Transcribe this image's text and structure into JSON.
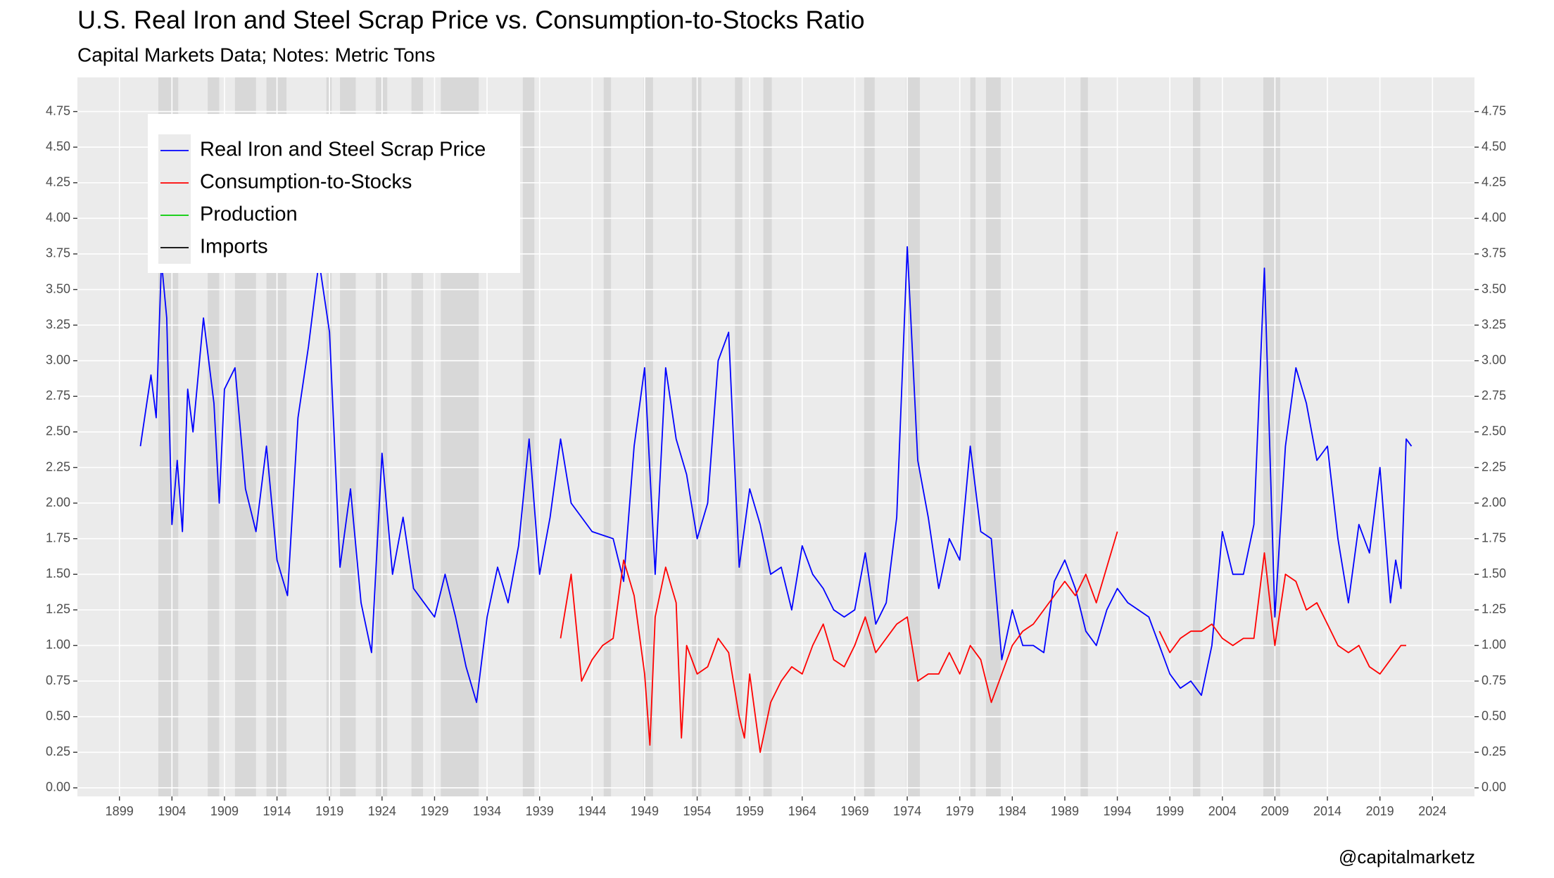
{
  "chart_data": {
    "type": "line",
    "title": "U.S. Real Iron and Steel Scrap Price vs. Consumption-to-Stocks Ratio",
    "subtitle": "Capital Markets Data; Notes: Metric Tons",
    "caption": "@capitalmarketz",
    "legend": "top-left",
    "grid": true,
    "xlim": [
      1895,
      2028
    ],
    "xticks": [
      1899,
      1904,
      1909,
      1914,
      1919,
      1924,
      1929,
      1934,
      1939,
      1944,
      1949,
      1954,
      1959,
      1964,
      1969,
      1974,
      1979,
      1984,
      1989,
      1994,
      1999,
      2004,
      2009,
      2014,
      2019,
      2024
    ],
    "ylim": [
      -0.06,
      4.99
    ],
    "yticks": [
      {
        "value": 0,
        "label": "0.00"
      },
      {
        "value": 0.25,
        "label": "0.25"
      },
      {
        "value": 0.5,
        "label": "0.50"
      },
      {
        "value": 0.75,
        "label": "0.75"
      },
      {
        "value": 1,
        "label": "1.00"
      },
      {
        "value": 1.25,
        "label": "1.25"
      },
      {
        "value": 1.5,
        "label": "1.50"
      },
      {
        "value": 1.75,
        "label": "1.75"
      },
      {
        "value": 2,
        "label": "2.00"
      },
      {
        "value": 2.25,
        "label": "2.25"
      },
      {
        "value": 2.5,
        "label": "2.50"
      },
      {
        "value": 2.75,
        "label": "2.75"
      },
      {
        "value": 3,
        "label": "3.00"
      },
      {
        "value": 3.25,
        "label": "3.25"
      },
      {
        "value": 3.5,
        "label": "3.50"
      },
      {
        "value": 3.75,
        "label": "3.75"
      },
      {
        "value": 4,
        "label": "4.00"
      },
      {
        "value": 4.25,
        "label": "4.25"
      },
      {
        "value": 4.5,
        "label": "4.50"
      },
      {
        "value": 4.75,
        "label": "4.75"
      }
    ],
    "y2lim": [
      -0.06,
      4.99
    ],
    "y2ticks": [
      {
        "value": 0,
        "label": "0.00"
      },
      {
        "value": 0.25,
        "label": "0.25"
      },
      {
        "value": 0.5,
        "label": "0.50"
      },
      {
        "value": 0.75,
        "label": "0.75"
      },
      {
        "value": 1,
        "label": "1.00"
      },
      {
        "value": 1.25,
        "label": "1.25"
      },
      {
        "value": 1.5,
        "label": "1.50"
      },
      {
        "value": 1.75,
        "label": "1.75"
      },
      {
        "value": 2,
        "label": "2.00"
      },
      {
        "value": 2.25,
        "label": "2.25"
      },
      {
        "value": 2.5,
        "label": "2.50"
      },
      {
        "value": 2.75,
        "label": "2.75"
      },
      {
        "value": 3,
        "label": "3.00"
      },
      {
        "value": 3.25,
        "label": "3.25"
      },
      {
        "value": 3.5,
        "label": "3.50"
      },
      {
        "value": 3.75,
        "label": "3.75"
      },
      {
        "value": 4,
        "label": "4.00"
      },
      {
        "value": 4.25,
        "label": "4.25"
      },
      {
        "value": 4.5,
        "label": "4.50"
      },
      {
        "value": 4.75,
        "label": "4.75"
      }
    ],
    "shaded_periods": [
      [
        1902.7,
        1904.6
      ],
      [
        1907.4,
        1908.5
      ],
      [
        1910,
        1912
      ],
      [
        1913,
        1914.9
      ],
      [
        1918.7,
        1919.2
      ],
      [
        1920,
        1921.5
      ],
      [
        1923.4,
        1924.5
      ],
      [
        1926.8,
        1927.9
      ],
      [
        1929.6,
        1933.2
      ],
      [
        1937.4,
        1938.5
      ],
      [
        1945.1,
        1945.8
      ],
      [
        1948.9,
        1949.8
      ],
      [
        1953.5,
        1954.4
      ],
      [
        1957.6,
        1958.3
      ],
      [
        1960.3,
        1961.1
      ],
      [
        1969.9,
        1970.9
      ],
      [
        1973.9,
        1975.2
      ],
      [
        1980,
        1980.5
      ],
      [
        1981.5,
        1982.9
      ],
      [
        1990.5,
        1991.2
      ],
      [
        2001.2,
        2001.9
      ],
      [
        2007.9,
        2009.5
      ]
    ],
    "series": [
      {
        "name": "Real Iron and Steel Scrap Price",
        "color": "#0000ff",
        "x": [
          1901,
          1902,
          1902.5,
          1903,
          1903.5,
          1904,
          1904.5,
          1905,
          1905.5,
          1906,
          1907,
          1908,
          1908.5,
          1909,
          1910,
          1911,
          1912,
          1913,
          1914,
          1915,
          1916,
          1917,
          1918,
          1919,
          1920,
          1921,
          1922,
          1923,
          1924,
          1925,
          1926,
          1927,
          1928,
          1929,
          1930,
          1931,
          1932,
          1933,
          1934,
          1935,
          1936,
          1937,
          1938,
          1939,
          1940,
          1941,
          1942,
          1944,
          1946,
          1947,
          1948,
          1949,
          1950,
          1951,
          1952,
          1953,
          1954,
          1955,
          1956,
          1957,
          1958,
          1959,
          1960,
          1961,
          1962,
          1963,
          1964,
          1965,
          1966,
          1967,
          1968,
          1969,
          1970,
          1971,
          1972,
          1973,
          1974,
          1975,
          1976,
          1977,
          1978,
          1979,
          1980,
          1981,
          1982,
          1983,
          1984,
          1985,
          1986,
          1987,
          1988,
          1989,
          1990,
          1991,
          1992,
          1993,
          1994,
          1995,
          1996,
          1997,
          1998,
          1999,
          2000,
          2001,
          2002,
          2003,
          2004,
          2005,
          2006,
          2007,
          2008,
          2009,
          2010,
          2011,
          2012,
          2013,
          2014,
          2015,
          2016,
          2017,
          2018,
          2019,
          2020,
          2020.5,
          2021,
          2021.5,
          2022
        ],
        "values": [
          2.4,
          2.9,
          2.6,
          3.7,
          3.3,
          1.85,
          2.3,
          1.8,
          2.8,
          2.5,
          3.3,
          2.7,
          2.0,
          2.8,
          2.95,
          2.1,
          1.8,
          2.4,
          1.6,
          1.35,
          2.6,
          3.1,
          3.7,
          3.2,
          1.55,
          2.1,
          1.3,
          0.95,
          2.35,
          1.5,
          1.9,
          1.4,
          1.3,
          1.2,
          1.5,
          1.2,
          0.85,
          0.6,
          1.2,
          1.55,
          1.3,
          1.7,
          2.45,
          1.5,
          1.9,
          2.45,
          2.0,
          1.8,
          1.75,
          1.45,
          2.4,
          2.95,
          1.5,
          2.95,
          2.45,
          2.2,
          1.75,
          2.0,
          3.0,
          3.2,
          1.55,
          2.1,
          1.85,
          1.5,
          1.55,
          1.25,
          1.7,
          1.5,
          1.4,
          1.25,
          1.2,
          1.25,
          1.65,
          1.15,
          1.3,
          1.9,
          3.8,
          2.3,
          1.9,
          1.4,
          1.75,
          1.6,
          2.4,
          1.8,
          1.75,
          0.9,
          1.25,
          1.0,
          1.0,
          0.95,
          1.45,
          1.6,
          1.4,
          1.1,
          1.0,
          1.25,
          1.4,
          1.3,
          1.25,
          1.2,
          1.0,
          0.8,
          0.7,
          0.75,
          0.65,
          1.0,
          1.8,
          1.5,
          1.5,
          1.85,
          3.65,
          1.2,
          2.4,
          2.95,
          2.7,
          2.3,
          2.4,
          1.75,
          1.3,
          1.85,
          1.65,
          2.25,
          1.3,
          1.6,
          1.4,
          2.45,
          2.4
        ]
      },
      {
        "name": "Consumption-to-Stocks",
        "color": "#ff0000",
        "x": [
          1941,
          1942,
          1943,
          1944,
          1945,
          1946,
          1947,
          1948,
          1949,
          1949.5,
          1950,
          1951,
          1952,
          1952.5,
          1953,
          1954,
          1955,
          1956,
          1957,
          1958,
          1958.5,
          1959,
          1960,
          1961,
          1962,
          1963,
          1964,
          1965,
          1966,
          1967,
          1968,
          1969,
          1970,
          1971,
          1972,
          1973,
          1974,
          1975,
          1976,
          1977,
          1978,
          1979,
          1980,
          1981,
          1982,
          1983,
          1984,
          1985,
          1986,
          1987,
          1988,
          1989,
          1990,
          1991,
          1992,
          1993,
          1994,
          1996,
          1998,
          1999,
          2000,
          2001,
          2002,
          2003,
          2004,
          2005,
          2006,
          2007,
          2008,
          2009,
          2010,
          2011,
          2012,
          2013,
          2014,
          2015,
          2016,
          2017,
          2018,
          2019,
          2020,
          2021,
          2021.5
        ],
        "values": [
          1.05,
          1.5,
          0.75,
          0.9,
          1.0,
          1.05,
          1.6,
          1.35,
          0.8,
          0.3,
          1.2,
          1.55,
          1.3,
          0.35,
          1.0,
          0.8,
          0.85,
          1.05,
          0.95,
          0.5,
          0.35,
          0.8,
          0.25,
          0.6,
          0.75,
          0.85,
          0.8,
          1.0,
          1.15,
          0.9,
          0.85,
          1.0,
          1.2,
          0.95,
          1.05,
          1.15,
          1.2,
          0.75,
          0.8,
          0.8,
          0.95,
          0.8,
          1.0,
          0.9,
          0.6,
          0.8,
          1.0,
          1.1,
          1.15,
          1.25,
          1.35,
          1.45,
          1.35,
          1.5,
          1.3,
          1.55,
          1.8,
          null,
          1.1,
          0.95,
          1.05,
          1.1,
          1.1,
          1.15,
          1.05,
          1.0,
          1.05,
          1.05,
          1.65,
          1.0,
          1.5,
          1.45,
          1.25,
          1.3,
          1.15,
          1.0,
          0.95,
          1.0,
          0.85,
          0.8,
          0.9,
          1.0,
          1.0
        ]
      },
      {
        "name": "Production",
        "color": "#00cc00",
        "x": [],
        "values": []
      },
      {
        "name": "Imports",
        "color": "#000000",
        "x": [],
        "values": []
      }
    ]
  }
}
